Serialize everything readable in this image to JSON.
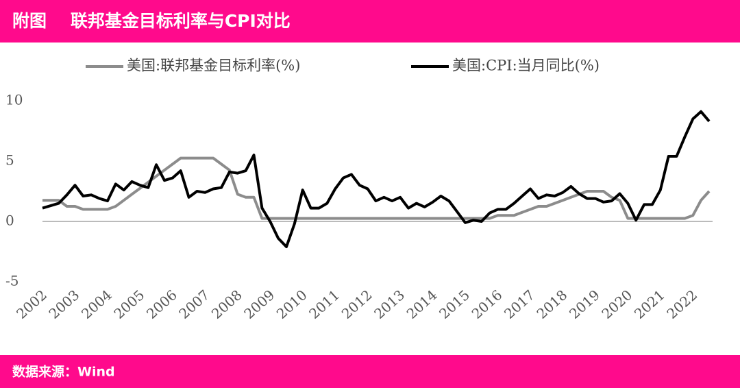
{
  "chart_data": {
    "type": "line",
    "title": "附图    联邦基金目标利率与CPI对比",
    "source": "数据来源：Wind",
    "x": [
      2002,
      2002.25,
      2002.5,
      2002.75,
      2003,
      2003.25,
      2003.5,
      2003.75,
      2004,
      2004.25,
      2004.5,
      2004.75,
      2005,
      2005.25,
      2005.5,
      2005.75,
      2006,
      2006.25,
      2006.5,
      2006.75,
      2007,
      2007.25,
      2007.5,
      2007.75,
      2008,
      2008.25,
      2008.5,
      2008.75,
      2009,
      2009.25,
      2009.5,
      2009.75,
      2010,
      2010.25,
      2010.5,
      2010.75,
      2011,
      2011.25,
      2011.5,
      2011.75,
      2012,
      2012.25,
      2012.5,
      2012.75,
      2013,
      2013.25,
      2013.5,
      2013.75,
      2014,
      2014.25,
      2014.5,
      2014.75,
      2015,
      2015.25,
      2015.5,
      2015.75,
      2016,
      2016.25,
      2016.5,
      2016.75,
      2017,
      2017.25,
      2017.5,
      2017.75,
      2018,
      2018.25,
      2018.5,
      2018.75,
      2019,
      2019.25,
      2019.5,
      2019.75,
      2020,
      2020.25,
      2020.5,
      2020.75,
      2021,
      2021.25,
      2021.5,
      2021.75,
      2022,
      2022.25,
      2022.5
    ],
    "series": [
      {
        "name": "美国:联邦基金目标利率(%)",
        "color": "#8c8c8c",
        "width": 4,
        "values": [
          1.75,
          1.75,
          1.75,
          1.25,
          1.25,
          1,
          1,
          1,
          1,
          1.25,
          1.75,
          2.25,
          2.75,
          3.25,
          3.75,
          4.25,
          4.75,
          5.25,
          5.25,
          5.25,
          5.25,
          5.25,
          4.75,
          4.25,
          2.25,
          2,
          2,
          0.25,
          0.25,
          0.25,
          0.25,
          0.25,
          0.25,
          0.25,
          0.25,
          0.25,
          0.25,
          0.25,
          0.25,
          0.25,
          0.25,
          0.25,
          0.25,
          0.25,
          0.25,
          0.25,
          0.25,
          0.25,
          0.25,
          0.25,
          0.25,
          0.25,
          0.25,
          0.25,
          0.25,
          0.25,
          0.5,
          0.5,
          0.5,
          0.75,
          1,
          1.25,
          1.25,
          1.5,
          1.75,
          2,
          2.25,
          2.5,
          2.5,
          2.5,
          2,
          1.75,
          0.25,
          0.25,
          0.25,
          0.25,
          0.25,
          0.25,
          0.25,
          0.25,
          0.5,
          1.75,
          2.5
        ]
      },
      {
        "name": "美国:CPI:当月同比(%)",
        "color": "#000000",
        "width": 4,
        "values": [
          1.1,
          1.3,
          1.5,
          2.2,
          3.0,
          2.1,
          2.2,
          1.9,
          1.7,
          3.1,
          2.6,
          3.3,
          3.0,
          2.8,
          4.7,
          3.4,
          3.6,
          4.2,
          2.0,
          2.5,
          2.4,
          2.7,
          2.8,
          4.1,
          4.0,
          4.2,
          5.5,
          1.1,
          0.0,
          -1.4,
          -2.1,
          -0.2,
          2.6,
          1.1,
          1.1,
          1.5,
          2.7,
          3.6,
          3.9,
          3.0,
          2.7,
          1.7,
          2.0,
          1.7,
          2.0,
          1.1,
          1.5,
          1.2,
          1.6,
          2.1,
          1.7,
          0.8,
          -0.1,
          0.1,
          0.0,
          0.7,
          1.0,
          1.0,
          1.5,
          2.1,
          2.7,
          1.9,
          2.2,
          2.1,
          2.4,
          2.9,
          2.3,
          1.9,
          1.9,
          1.6,
          1.7,
          2.3,
          1.5,
          0.1,
          1.4,
          1.4,
          2.6,
          5.4,
          5.4,
          7.0,
          8.5,
          9.1,
          8.3
        ]
      }
    ],
    "xlim": [
      2002,
      2022.5
    ],
    "xticks": [
      2002,
      2003,
      2004,
      2005,
      2006,
      2007,
      2008,
      2009,
      2010,
      2011,
      2012,
      2013,
      2014,
      2015,
      2016,
      2017,
      2018,
      2019,
      2020,
      2021,
      2022
    ],
    "ylim": [
      -5,
      10
    ],
    "yticks": [
      -5,
      0,
      5,
      10
    ],
    "zero_line": true
  }
}
